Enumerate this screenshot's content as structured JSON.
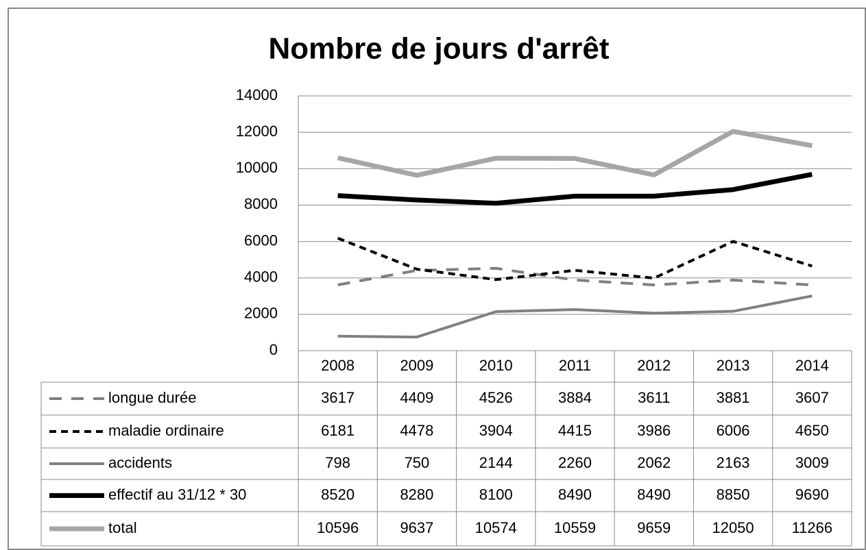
{
  "chart_data": {
    "type": "line",
    "title": "Nombre de jours d'arrêt",
    "categories": [
      "2008",
      "2009",
      "2010",
      "2011",
      "2012",
      "2013",
      "2014"
    ],
    "ylim": [
      0,
      14000
    ],
    "yticks": [
      0,
      2000,
      4000,
      6000,
      8000,
      10000,
      12000,
      14000
    ],
    "grid": true,
    "data_table": true,
    "series": [
      {
        "name": "longue durée",
        "color": "#7f7f7f",
        "line_style": "long-dash",
        "weight": "normal",
        "values": [
          3617,
          4409,
          4526,
          3884,
          3611,
          3881,
          3607
        ]
      },
      {
        "name": "maladie ordinaire",
        "color": "#000000",
        "line_style": "short-dash",
        "weight": "normal",
        "values": [
          6181,
          4478,
          3904,
          4415,
          3986,
          6006,
          4650
        ]
      },
      {
        "name": "accidents",
        "color": "#808080",
        "line_style": "solid",
        "weight": "normal",
        "values": [
          798,
          750,
          2144,
          2260,
          2062,
          2163,
          3009
        ]
      },
      {
        "name": "effectif au 31/12 * 30",
        "color": "#000000",
        "line_style": "solid",
        "weight": "bold",
        "values": [
          8520,
          8280,
          8100,
          8490,
          8490,
          8850,
          9690
        ]
      },
      {
        "name": "total",
        "color": "#a6a6a6",
        "line_style": "solid",
        "weight": "bold",
        "values": [
          10596,
          9637,
          10574,
          10559,
          9659,
          12050,
          11266
        ]
      }
    ]
  }
}
